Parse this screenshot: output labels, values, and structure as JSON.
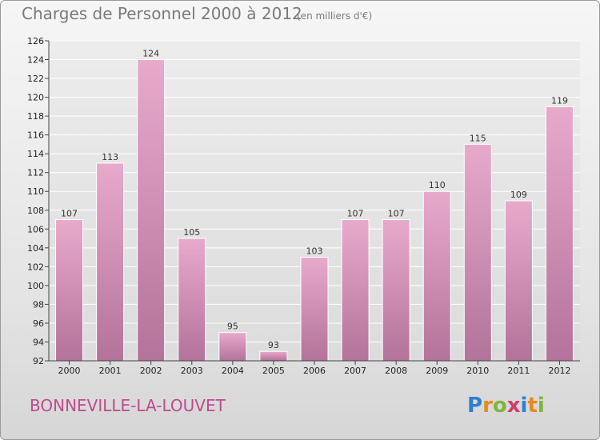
{
  "header": {
    "title": "Charges de Personnel 2000 à 2012",
    "unit": "(en milliers d'€)"
  },
  "footer": {
    "city": "BONNEVILLE-LA-LOUVET",
    "logo_text": "Proxiti"
  },
  "colors": {
    "bar_top": "#e8aacb",
    "bar_bottom": "#b3739a",
    "text_city": "#c04a8d"
  },
  "chart_data": {
    "type": "bar",
    "title": "Charges de Personnel 2000 à 2012",
    "subtitle": "(en milliers d'€)",
    "categories": [
      "2000",
      "2001",
      "2002",
      "2003",
      "2004",
      "2005",
      "2006",
      "2007",
      "2008",
      "2009",
      "2010",
      "2011",
      "2012"
    ],
    "values": [
      107,
      113,
      124,
      105,
      95,
      93,
      103,
      107,
      107,
      110,
      115,
      109,
      119
    ],
    "ylim": [
      92,
      126
    ],
    "yticks": [
      92,
      94,
      96,
      98,
      100,
      102,
      104,
      106,
      108,
      110,
      112,
      114,
      116,
      118,
      120,
      122,
      124,
      126
    ],
    "grid": true
  }
}
